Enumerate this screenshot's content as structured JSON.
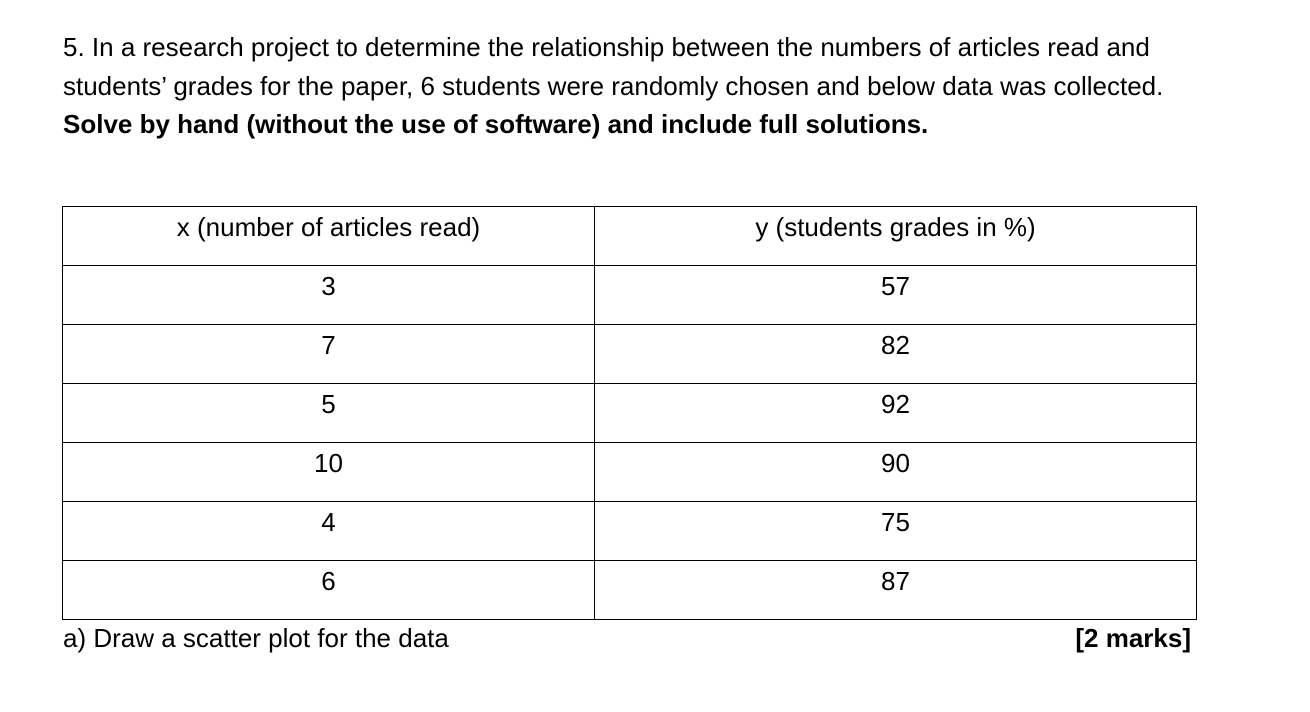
{
  "question": {
    "intro": "5. In a research project to determine the relationship between the numbers of articles read and students’ grades for the paper, 6 students were randomly chosen and below data was collected. ",
    "instruction": "Solve by hand (without the use of software) and include full solutions."
  },
  "table": {
    "headers": [
      "x (number of articles read)",
      "y (students grades in %)"
    ],
    "rows": [
      [
        "3",
        "57"
      ],
      [
        "7",
        "82"
      ],
      [
        "5",
        "92"
      ],
      [
        "10",
        "90"
      ],
      [
        "4",
        "75"
      ],
      [
        "6",
        "87"
      ]
    ]
  },
  "part_a": {
    "text": "a) Draw a scatter plot for the data",
    "marks": "[2 marks]"
  }
}
